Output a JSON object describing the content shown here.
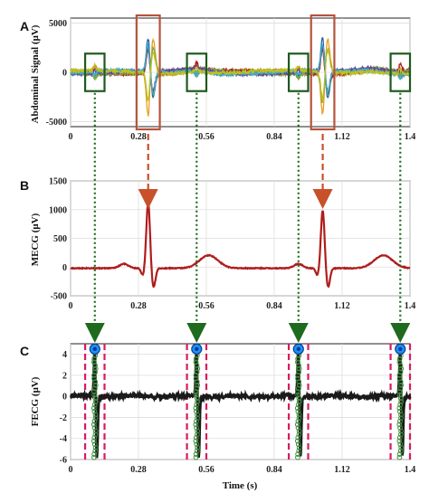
{
  "chart_data": [
    {
      "panel": "A",
      "type": "line",
      "ylabel": "Abdominal Signal (μV)",
      "xlim": [
        0,
        1.4
      ],
      "ylim": [
        -5500,
        5500
      ],
      "xticks": [
        "0",
        "0.28",
        "0.56",
        "0.84",
        "1.12",
        "1.4"
      ],
      "yticks": [
        "-5000",
        "0",
        "5000"
      ],
      "maternal_peaks": [
        0.32,
        1.04
      ],
      "fetal_peaks": [
        0.1,
        0.52,
        0.94,
        1.36
      ],
      "series_colors": [
        "#2166ac",
        "#e8a020",
        "#8c8c20",
        "#b02020",
        "#7aa84a",
        "#6a3d9a",
        "#3ab0c8",
        "#c0c020"
      ],
      "colors": {
        "maternal_box": "#b5533c",
        "fetal_box": "#1e5a1e"
      }
    },
    {
      "panel": "B",
      "type": "line",
      "ylabel": "MECG (μV)",
      "xlim": [
        0,
        1.4
      ],
      "ylim": [
        -500,
        1500
      ],
      "xticks": [
        "0",
        "0.28",
        "0.56",
        "0.84",
        "1.12",
        "1.4"
      ],
      "yticks": [
        "-500",
        "0",
        "500",
        "1000",
        "1500"
      ],
      "maternal_peaks": [
        0.32,
        1.04
      ],
      "peak_values": [
        1130,
        990
      ],
      "colors": {
        "line": "#b01c1c",
        "arrow": "#c8502a"
      }
    },
    {
      "panel": "C",
      "type": "line",
      "ylabel": "FECG (μV)",
      "xlabel": "Time (s)",
      "xlim": [
        0,
        1.4
      ],
      "ylim": [
        -6,
        5
      ],
      "xticks": [
        "0",
        "0.28",
        "0.56",
        "0.84",
        "1.12",
        "1.4"
      ],
      "yticks": [
        "-6",
        "-4",
        "-2",
        "0",
        "2",
        "4"
      ],
      "fetal_peaks": [
        0.1,
        0.52,
        0.94,
        1.36
      ],
      "peak_amplitude": 4.5,
      "trough_amplitude": -5.8,
      "colors": {
        "line": "#1a1a1a",
        "marker": "#3c8c3c",
        "window": "#d81b60",
        "peak": "#1e90ff",
        "arrow": "#1e6a1e"
      }
    }
  ]
}
